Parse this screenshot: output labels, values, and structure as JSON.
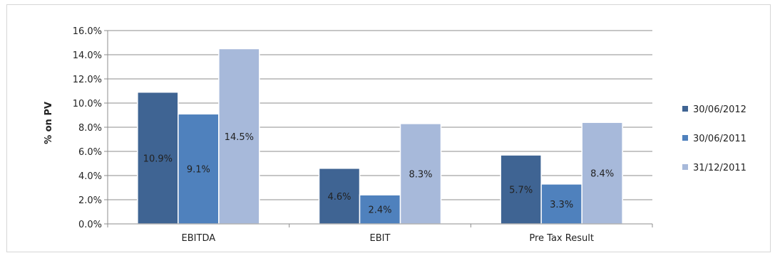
{
  "chart_data": {
    "type": "bar",
    "title": "",
    "xlabel": "",
    "ylabel": "% on PV",
    "ylim": [
      0,
      16
    ],
    "y_ticks": [
      "0.0%",
      "2.0%",
      "4.0%",
      "6.0%",
      "8.0%",
      "10.0%",
      "12.0%",
      "14.0%",
      "16.0%"
    ],
    "grid": true,
    "legend_position": "right",
    "categories": [
      "EBITDA",
      "EBIT",
      "Pre Tax Result"
    ],
    "series": [
      {
        "name": "30/06/2012",
        "color": "#3f6493",
        "values": [
          10.9,
          4.6,
          5.7
        ],
        "labels": [
          "10.9%",
          "4.6%",
          "5.7%"
        ]
      },
      {
        "name": "30/06/2011",
        "color": "#4f81bd",
        "values": [
          9.1,
          2.4,
          3.3
        ],
        "labels": [
          "9.1%",
          "2.4%",
          "3.3%"
        ]
      },
      {
        "name": "31/12/2011",
        "color": "#a7b9da",
        "values": [
          14.5,
          8.3,
          8.4
        ],
        "labels": [
          "14.5%",
          "8.3%",
          "8.4%"
        ]
      }
    ]
  }
}
